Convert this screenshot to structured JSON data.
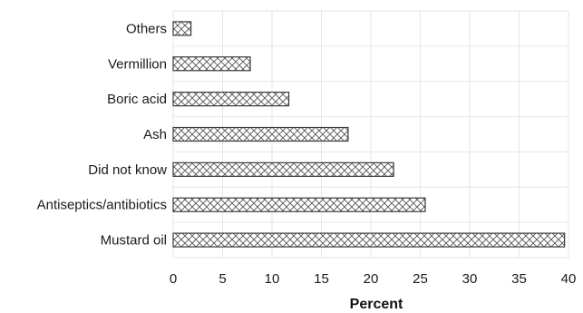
{
  "chart_data": {
    "type": "bar",
    "orientation": "horizontal",
    "categories": [
      "Others",
      "Vermillion",
      "Boric acid",
      "Ash",
      "Did not know",
      "Antiseptics/antibiotics",
      "Mustard oil"
    ],
    "values": [
      1.8,
      7.8,
      11.7,
      17.7,
      22.3,
      25.5,
      39.6
    ],
    "xlabel": "Percent",
    "ylabel": "",
    "xlim": [
      0,
      40
    ],
    "xticks": [
      0,
      5,
      10,
      15,
      20,
      25,
      30,
      35,
      40
    ],
    "grid": true,
    "bar_fill": "crosshatch",
    "colors": {
      "bar_stroke": "#3a3a3a",
      "hatch": "#555555",
      "grid": "#e6e6e6"
    }
  }
}
